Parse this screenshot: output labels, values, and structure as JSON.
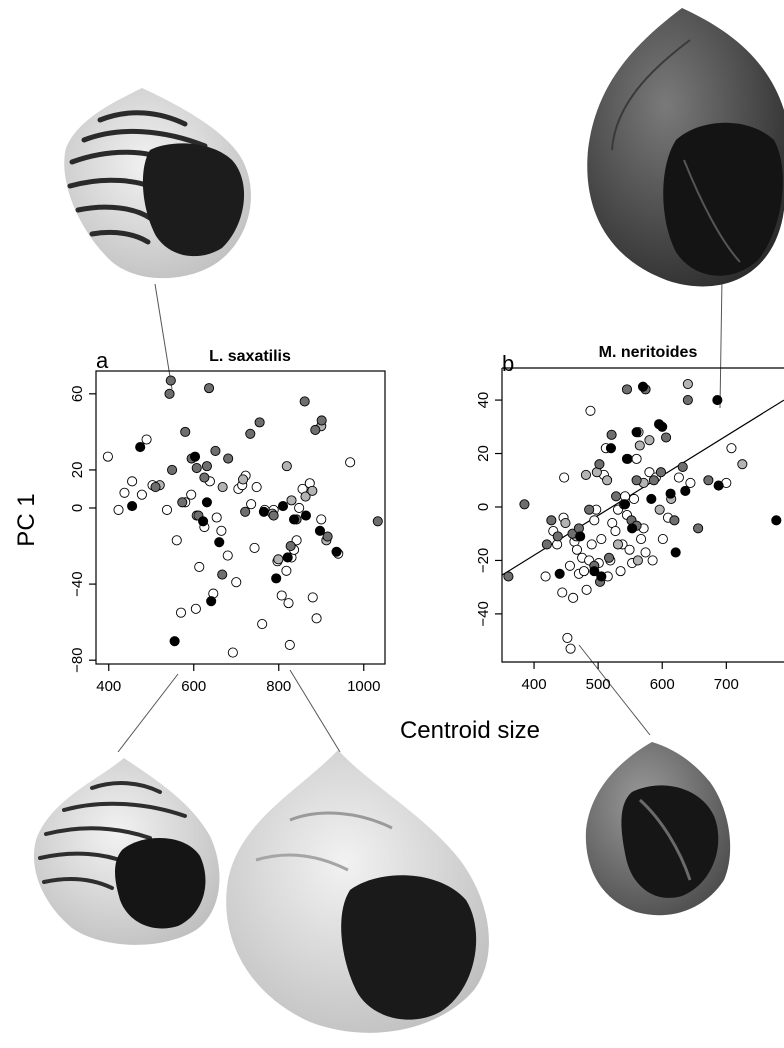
{
  "figure": {
    "shared_xlabel": "Centroid size",
    "shared_ylabel": "PC 1"
  },
  "colors": {
    "white": "#ffffff",
    "light_grey": "#b3b3b3",
    "dark_grey": "#6e6e6e",
    "black": "#000000",
    "shell_dark": "#2b2b2b",
    "shell_mid": "#8a8a8a",
    "shell_light": "#e6e6e6"
  },
  "chart_data": [
    {
      "type": "scatter",
      "panel_label": "a",
      "title": "L. saxatilis",
      "xlabel": "Centroid size",
      "ylabel": "PC 1",
      "xlim": [
        370,
        1050
      ],
      "ylim": [
        -82,
        72
      ],
      "xticks": [
        400,
        600,
        800,
        1000
      ],
      "yticks": [
        -80,
        -40,
        0,
        20,
        60
      ],
      "grid": false,
      "series": [
        {
          "group": "white",
          "points": [
            [
              398,
              27
            ],
            [
              423,
              -1
            ],
            [
              437,
              8
            ],
            [
              455,
              14
            ],
            [
              478,
              7
            ],
            [
              489,
              36
            ],
            [
              503,
              12
            ],
            [
              537,
              -1
            ],
            [
              560,
              -17
            ],
            [
              570,
              -55
            ],
            [
              580,
              3
            ],
            [
              594,
              7
            ],
            [
              605,
              -53
            ],
            [
              613,
              -31
            ],
            [
              625,
              -10
            ],
            [
              638,
              14
            ],
            [
              646,
              -45
            ],
            [
              654,
              -5
            ],
            [
              665,
              -12
            ],
            [
              680,
              -25
            ],
            [
              692,
              -76
            ],
            [
              700,
              -39
            ],
            [
              705,
              10
            ],
            [
              714,
              12
            ],
            [
              722,
              17
            ],
            [
              735,
              2
            ],
            [
              743,
              -21
            ],
            [
              748,
              11
            ],
            [
              761,
              -61
            ],
            [
              767,
              -1
            ],
            [
              788,
              -1
            ],
            [
              797,
              -28
            ],
            [
              807,
              -46
            ],
            [
              818,
              -33
            ],
            [
              823,
              -50
            ],
            [
              830,
              -26
            ],
            [
              836,
              -22
            ],
            [
              842,
              -17
            ],
            [
              848,
              0
            ],
            [
              856,
              10
            ],
            [
              873,
              13
            ],
            [
              880,
              -47
            ],
            [
              889,
              -58
            ],
            [
              900,
              -6
            ],
            [
              940,
              -24
            ],
            [
              968,
              24
            ],
            [
              826,
              -72
            ]
          ]
        },
        {
          "group": "light_grey",
          "points": [
            [
              520,
              12
            ],
            [
              607,
              -4
            ],
            [
              668,
              11
            ],
            [
              716,
              15
            ],
            [
              785,
              -3
            ],
            [
              819,
              22
            ],
            [
              830,
              4
            ],
            [
              863,
              6
            ],
            [
              879,
              9
            ],
            [
              912,
              -17
            ],
            [
              799,
              -27
            ],
            [
              900,
              43
            ]
          ]
        },
        {
          "group": "dark_grey",
          "points": [
            [
              510,
              11
            ],
            [
              543,
              60
            ],
            [
              549,
              20
            ],
            [
              573,
              3
            ],
            [
              580,
              40
            ],
            [
              595,
              26
            ],
            [
              607,
              21
            ],
            [
              611,
              -4
            ],
            [
              625,
              16
            ],
            [
              631,
              22
            ],
            [
              636,
              63
            ],
            [
              651,
              30
            ],
            [
              667,
              -35
            ],
            [
              681,
              26
            ],
            [
              721,
              -2
            ],
            [
              733,
              39
            ],
            [
              755,
              45
            ],
            [
              788,
              -4
            ],
            [
              842,
              -6
            ],
            [
              861,
              56
            ],
            [
              886,
              41
            ],
            [
              901,
              46
            ],
            [
              915,
              -15
            ],
            [
              1033,
              -7
            ],
            [
              546,
              67
            ],
            [
              828,
              -20
            ]
          ]
        },
        {
          "group": "black",
          "points": [
            [
              455,
              1
            ],
            [
              474,
              32
            ],
            [
              555,
              -70
            ],
            [
              603,
              27
            ],
            [
              622,
              -7
            ],
            [
              631,
              3
            ],
            [
              641,
              -49
            ],
            [
              660,
              -18
            ],
            [
              765,
              -2
            ],
            [
              794,
              -37
            ],
            [
              810,
              1
            ],
            [
              821,
              -26
            ],
            [
              836,
              -6
            ],
            [
              864,
              -4
            ],
            [
              897,
              -12
            ],
            [
              936,
              -23
            ]
          ]
        }
      ]
    },
    {
      "type": "scatter",
      "panel_label": "b",
      "title": "M. neritoides",
      "xlabel": "Centroid size",
      "ylabel": "PC 1",
      "xlim": [
        350,
        790
      ],
      "ylim": [
        -58,
        52
      ],
      "xticks": [
        400,
        500,
        600,
        700
      ],
      "yticks": [
        -40,
        -20,
        0,
        20,
        40
      ],
      "grid": false,
      "trendline": {
        "x": [
          350,
          790
        ],
        "y": [
          -25.5,
          40
        ]
      },
      "series": [
        {
          "group": "white",
          "points": [
            [
              418,
              -26
            ],
            [
              430,
              -9
            ],
            [
              436,
              -14
            ],
            [
              444,
              -32
            ],
            [
              446,
              -4
            ],
            [
              447,
              11
            ],
            [
              452,
              -49
            ],
            [
              456,
              -22
            ],
            [
              457,
              -53
            ],
            [
              461,
              -34
            ],
            [
              463,
              -13
            ],
            [
              467,
              -16
            ],
            [
              470,
              -25
            ],
            [
              475,
              -19
            ],
            [
              478,
              -24
            ],
            [
              482,
              -31
            ],
            [
              486,
              -20
            ],
            [
              488,
              36
            ],
            [
              490,
              -14
            ],
            [
              494,
              -5
            ],
            [
              497,
              -1
            ],
            [
              501,
              -21
            ],
            [
              505,
              -12
            ],
            [
              509,
              12
            ],
            [
              512,
              22
            ],
            [
              515,
              -26
            ],
            [
              519,
              -20
            ],
            [
              522,
              -6
            ],
            [
              527,
              -9
            ],
            [
              531,
              -1
            ],
            [
              535,
              -24
            ],
            [
              538,
              -14
            ],
            [
              542,
              4
            ],
            [
              545,
              -3
            ],
            [
              549,
              -16
            ],
            [
              553,
              -21
            ],
            [
              556,
              3
            ],
            [
              560,
              18
            ],
            [
              563,
              28
            ],
            [
              567,
              -12
            ],
            [
              571,
              -8
            ],
            [
              574,
              -17
            ],
            [
              580,
              13
            ],
            [
              585,
              -20
            ],
            [
              590,
              11
            ],
            [
              601,
              -12
            ],
            [
              609,
              -4
            ],
            [
              626,
              11
            ],
            [
              644,
              9
            ],
            [
              708,
              22
            ],
            [
              700,
              9
            ]
          ]
        },
        {
          "group": "light_grey",
          "points": [
            [
              449,
              -6
            ],
            [
              466,
              -11
            ],
            [
              481,
              12
            ],
            [
              498,
              13
            ],
            [
              514,
              10
            ],
            [
              531,
              -14
            ],
            [
              546,
              18
            ],
            [
              562,
              -20
            ],
            [
              571,
              9
            ],
            [
              580,
              25
            ],
            [
              596,
              -1
            ],
            [
              614,
              3
            ],
            [
              640,
              46
            ],
            [
              725,
              16
            ],
            [
              565,
              23
            ]
          ]
        },
        {
          "group": "dark_grey",
          "points": [
            [
              360,
              -26
            ],
            [
              385,
              1
            ],
            [
              420,
              -14
            ],
            [
              427,
              -5
            ],
            [
              437,
              -11
            ],
            [
              460,
              -10
            ],
            [
              470,
              -8
            ],
            [
              486,
              -1
            ],
            [
              494,
              -22
            ],
            [
              503,
              -28
            ],
            [
              517,
              -19
            ],
            [
              528,
              4
            ],
            [
              540,
              1
            ],
            [
              552,
              -5
            ],
            [
              560,
              -7
            ],
            [
              574,
              44
            ],
            [
              587,
              10
            ],
            [
              598,
              13
            ],
            [
              606,
              26
            ],
            [
              619,
              -5
            ],
            [
              632,
              15
            ],
            [
              656,
              -8
            ],
            [
              672,
              10
            ],
            [
              560,
              10
            ],
            [
              640,
              40
            ],
            [
              545,
              44
            ],
            [
              502,
              16
            ],
            [
              521,
              27
            ]
          ]
        },
        {
          "group": "black",
          "points": [
            [
              440,
              -25
            ],
            [
              472,
              -11
            ],
            [
              494,
              -24
            ],
            [
              520,
              22
            ],
            [
              542,
              1
            ],
            [
              560,
              28
            ],
            [
              570,
              45
            ],
            [
              583,
              3
            ],
            [
              595,
              31
            ],
            [
              613,
              5
            ],
            [
              621,
              -17
            ],
            [
              636,
              6
            ],
            [
              686,
              40
            ],
            [
              778,
              -5
            ],
            [
              688,
              8
            ],
            [
              505,
              -26
            ],
            [
              545,
              18
            ],
            [
              600,
              30
            ],
            [
              553,
              -8
            ]
          ]
        }
      ]
    }
  ]
}
